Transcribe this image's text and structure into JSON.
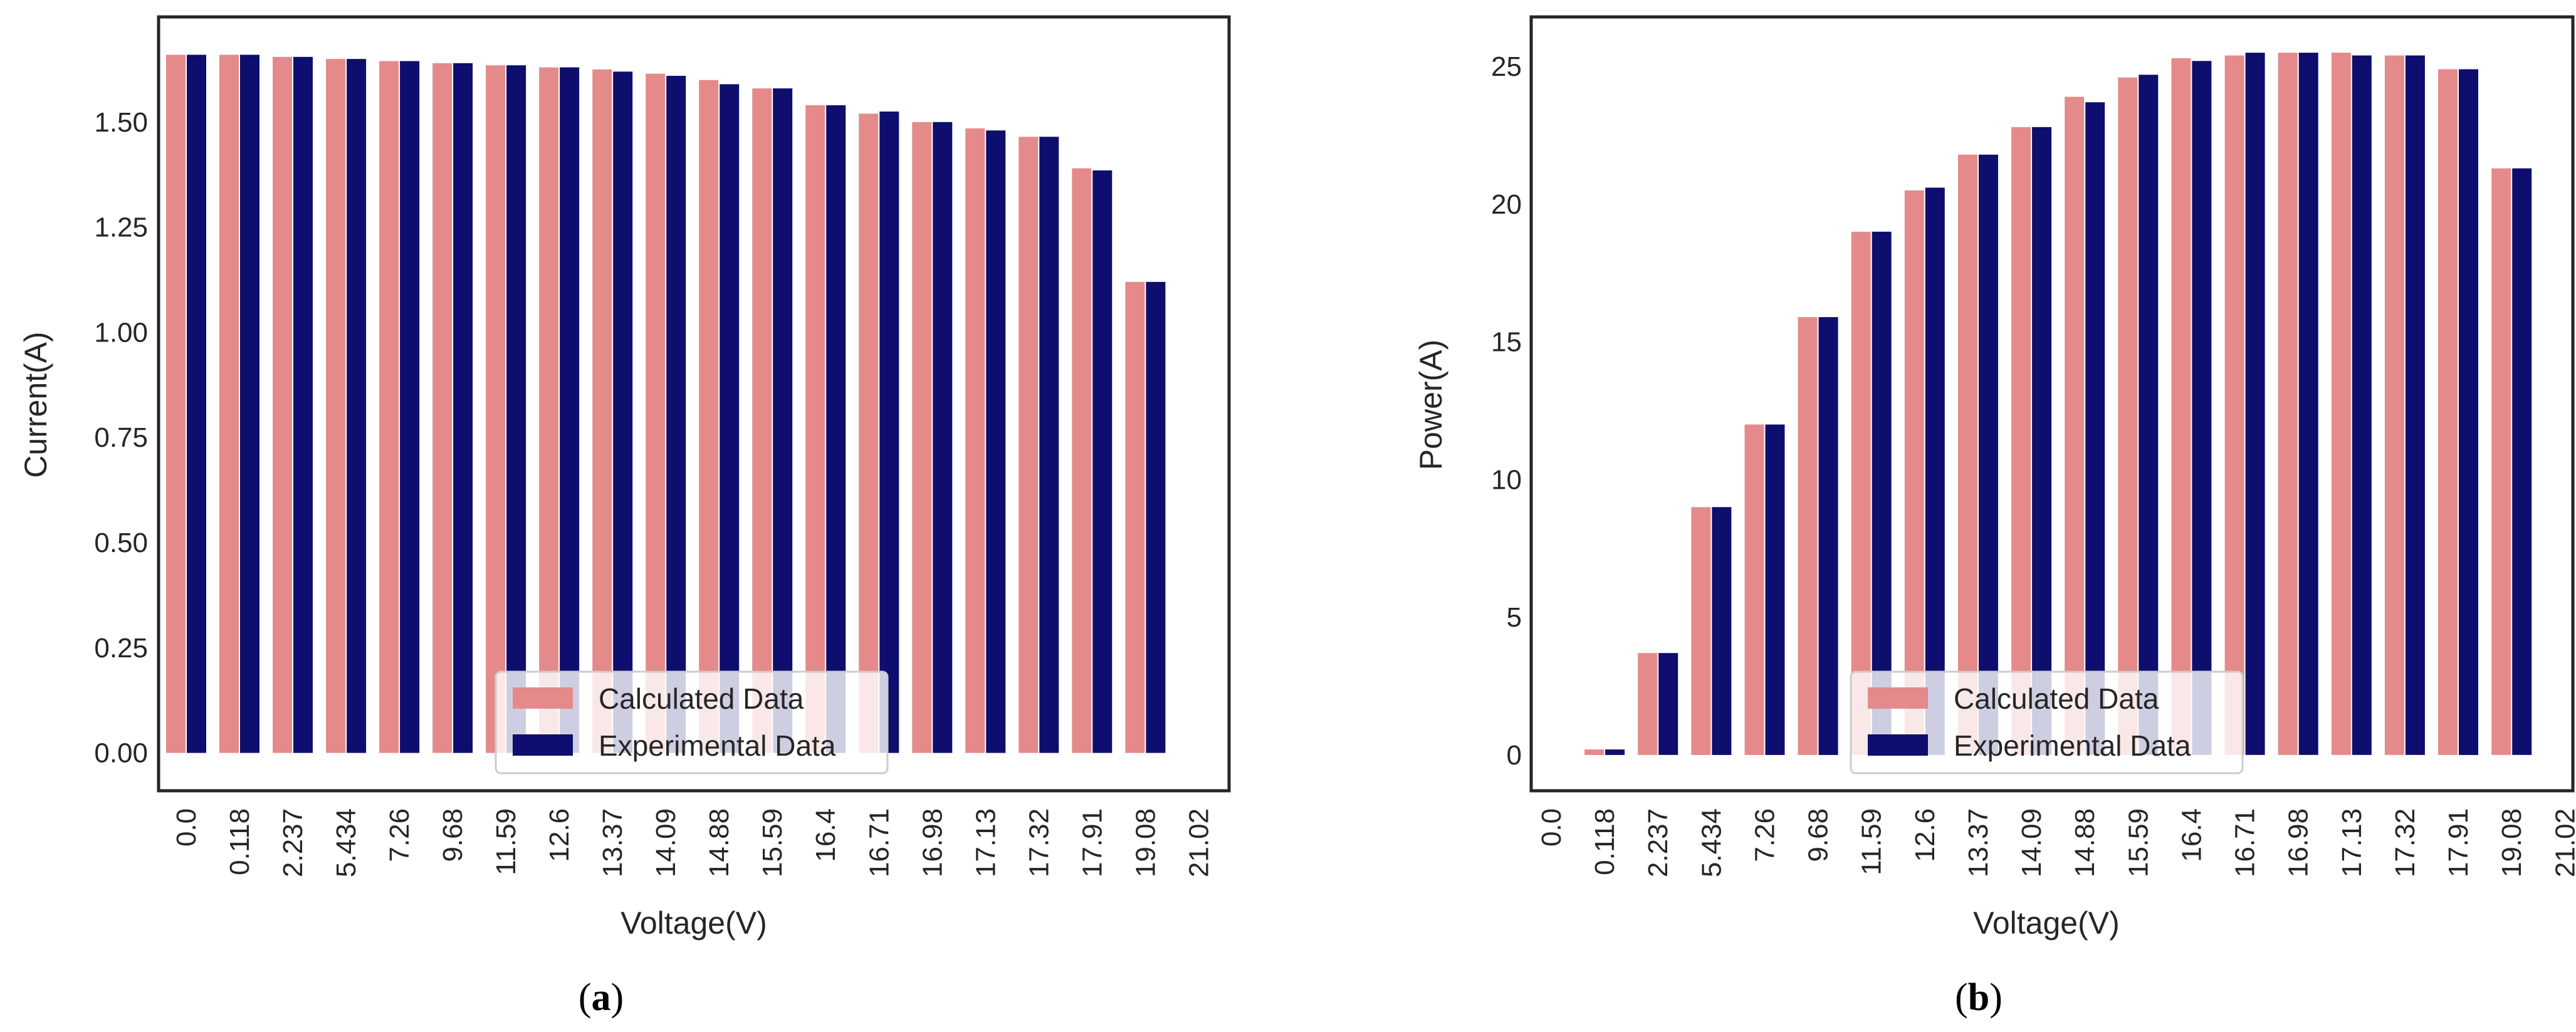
{
  "colors": {
    "calculated": "#e48a8a",
    "experimental": "#0e0e6e",
    "axes": "#262626",
    "background": "#ffffff"
  },
  "chart_data": [
    {
      "id": "a",
      "type": "bar",
      "caption_label": "a",
      "xlabel": "Voltage(V)",
      "ylabel": "Current(A)",
      "ylim": [
        -0.09,
        1.75
      ],
      "yticks": [
        "0.00",
        "0.25",
        "0.50",
        "0.75",
        "1.00",
        "1.25",
        "1.50"
      ],
      "ytick_values": [
        0,
        0.25,
        0.5,
        0.75,
        1.0,
        1.25,
        1.5
      ],
      "categories": [
        "0.0",
        "0.118",
        "2.237",
        "5.434",
        "7.26",
        "9.68",
        "11.59",
        "12.6",
        "13.37",
        "14.09",
        "14.88",
        "15.59",
        "16.4",
        "16.71",
        "16.98",
        "17.13",
        "17.32",
        "17.91",
        "19.08",
        "21.02"
      ],
      "series": [
        {
          "name": "Calculated Data",
          "values": [
            1.66,
            1.66,
            1.655,
            1.65,
            1.645,
            1.64,
            1.635,
            1.63,
            1.625,
            1.615,
            1.6,
            1.58,
            1.54,
            1.52,
            1.5,
            1.485,
            1.465,
            1.39,
            1.12,
            0
          ]
        },
        {
          "name": "Experimental Data",
          "values": [
            1.66,
            1.66,
            1.655,
            1.65,
            1.645,
            1.64,
            1.635,
            1.63,
            1.62,
            1.61,
            1.59,
            1.58,
            1.54,
            1.525,
            1.5,
            1.48,
            1.465,
            1.385,
            1.12,
            0
          ]
        }
      ],
      "legend": {
        "position": "lower center",
        "entries": [
          "Calculated Data",
          "Experimental Data"
        ]
      },
      "grid": false
    },
    {
      "id": "b",
      "type": "bar",
      "caption_label": "b",
      "xlabel": "Voltage(V)",
      "ylabel": "Power(A)",
      "ylim": [
        -1.3,
        26.8
      ],
      "yticks": [
        "0",
        "5",
        "10",
        "15",
        "20",
        "25"
      ],
      "ytick_values": [
        0,
        5,
        10,
        15,
        20,
        25
      ],
      "categories": [
        "0.0",
        "0.118",
        "2.237",
        "5.434",
        "7.26",
        "9.68",
        "11.59",
        "12.6",
        "13.37",
        "14.09",
        "14.88",
        "15.59",
        "16.4",
        "16.71",
        "16.98",
        "17.13",
        "17.32",
        "17.91",
        "19.08",
        "21.02"
      ],
      "series": [
        {
          "name": "Calculated Data",
          "values": [
            0,
            0.2,
            3.7,
            9.0,
            12.0,
            15.9,
            19.0,
            20.5,
            21.8,
            22.8,
            23.9,
            24.6,
            25.3,
            25.4,
            25.5,
            25.5,
            25.4,
            24.9,
            21.3,
            0
          ]
        },
        {
          "name": "Experimental Data",
          "values": [
            0,
            0.2,
            3.7,
            9.0,
            12.0,
            15.9,
            19.0,
            20.6,
            21.8,
            22.8,
            23.7,
            24.7,
            25.2,
            25.5,
            25.5,
            25.4,
            25.4,
            24.9,
            21.3,
            0
          ]
        }
      ],
      "legend": {
        "position": "lower center",
        "entries": [
          "Calculated Data",
          "Experimental Data"
        ]
      },
      "grid": false
    }
  ]
}
